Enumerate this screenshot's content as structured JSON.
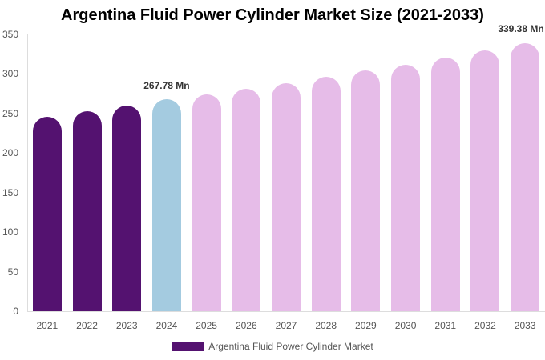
{
  "chart_data": {
    "type": "bar",
    "title": "Argentina Fluid Power Cylinder Market Size (2021-2033)",
    "xlabel": "",
    "ylabel": "",
    "ylim": [
      0,
      350
    ],
    "yticks": [
      0,
      50,
      100,
      150,
      200,
      250,
      300,
      350
    ],
    "grid": false,
    "legend_position": "bottom",
    "categories": [
      "2021",
      "2022",
      "2023",
      "2024",
      "2025",
      "2026",
      "2027",
      "2028",
      "2029",
      "2030",
      "2031",
      "2032",
      "2033"
    ],
    "series": [
      {
        "name": "Argentina Fluid Power Cylinder Market",
        "values": [
          246,
          253,
          260,
          267.78,
          274,
          281,
          288,
          296,
          304,
          312,
          321,
          330,
          339.38
        ]
      }
    ],
    "bar_colors": [
      "#541270",
      "#541270",
      "#541270",
      "#a4cbe0",
      "#e6bce8",
      "#e6bce8",
      "#e6bce8",
      "#e6bce8",
      "#e6bce8",
      "#e6bce8",
      "#e6bce8",
      "#e6bce8",
      "#e6bce8"
    ],
    "annotations": [
      {
        "category": "2024",
        "text": "267.78 Mn"
      },
      {
        "category": "2033",
        "text": "339.38 Mn"
      }
    ],
    "legend": [
      {
        "label": "Argentina Fluid Power Cylinder Market",
        "color": "#541270"
      }
    ]
  }
}
